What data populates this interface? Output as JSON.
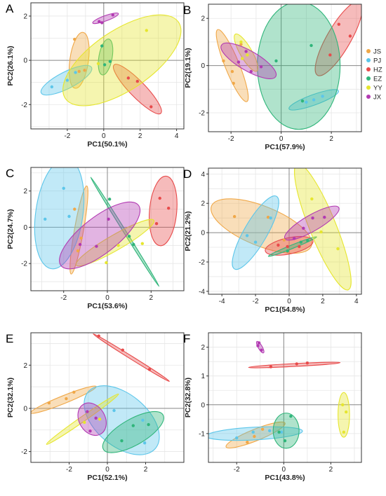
{
  "colors": {
    "JS": "#f0a848",
    "PJ": "#5cc6ea",
    "HZ": "#e84b4b",
    "EZ": "#2fb57a",
    "YY": "#e6e62e",
    "JX": "#b23ab2"
  },
  "legend": {
    "items": [
      {
        "key": "JS",
        "label": "JS"
      },
      {
        "key": "PJ",
        "label": "PJ"
      },
      {
        "key": "HZ",
        "label": "HZ"
      },
      {
        "key": "EZ",
        "label": "EZ"
      },
      {
        "key": "YY",
        "label": "YY"
      },
      {
        "key": "JX",
        "label": "JX"
      }
    ]
  },
  "chart_data": [
    {
      "type": "scatter",
      "panel": "A",
      "xlabel": "PC1(50.1%)",
      "ylabel": "PC2(26.1%)",
      "xlim": [
        -4,
        4.4
      ],
      "ylim": [
        -3.1,
        2.6
      ],
      "xticks": [
        -2,
        0,
        2,
        4
      ],
      "yticks": [
        -2,
        0,
        2
      ],
      "series": [
        {
          "group": "JS",
          "points": [
            [
              -1.6,
              0.95
            ],
            [
              -1.35,
              -0.5
            ],
            [
              -1.05,
              -0.45
            ]
          ],
          "ellipse": {
            "cx": -1.35,
            "cy": 0.0,
            "rx": 1.55,
            "ry": 0.42,
            "angle": 82
          }
        },
        {
          "group": "PJ",
          "points": [
            [
              -2.85,
              -1.2
            ],
            [
              -2.0,
              -0.9
            ],
            [
              -1.55,
              -0.55
            ]
          ],
          "ellipse": {
            "cx": -2.05,
            "cy": -0.9,
            "rx": 1.55,
            "ry": 0.38,
            "angle": 27
          }
        },
        {
          "group": "HZ",
          "points": [
            [
              1.35,
              -0.8
            ],
            [
              1.85,
              -0.95
            ],
            [
              2.6,
              -2.1
            ]
          ],
          "ellipse": {
            "cx": 1.85,
            "cy": -1.3,
            "rx": 1.85,
            "ry": 0.36,
            "angle": -46
          }
        },
        {
          "group": "EZ",
          "points": [
            [
              -0.1,
              0.65
            ],
            [
              0.05,
              -0.2
            ],
            [
              0.35,
              -0.05
            ]
          ],
          "ellipse": {
            "cx": 0.1,
            "cy": 0.15,
            "rx": 1.0,
            "ry": 0.3,
            "angle": 80
          }
        },
        {
          "group": "YY",
          "points": [
            [
              2.35,
              1.35
            ],
            [
              -0.3,
              -0.15
            ]
          ],
          "ellipse": {
            "cx": 1.0,
            "cy": 0.0,
            "rx": 3.75,
            "ry": 1.35,
            "angle": 34
          }
        },
        {
          "group": "JX",
          "points": [
            [
              -0.25,
              1.75
            ],
            [
              0.5,
              2.05
            ],
            [
              -0.1,
              1.7
            ]
          ],
          "ellipse": {
            "cx": 0.1,
            "cy": 1.9,
            "rx": 0.75,
            "ry": 0.12,
            "angle": 20
          }
        }
      ]
    },
    {
      "type": "scatter",
      "panel": "B",
      "xlabel": "PC1(57.9%)",
      "ylabel": "PC2(19.1%)",
      "xlim": [
        -2.9,
        3.2
      ],
      "ylim": [
        -2.8,
        2.6
      ],
      "xticks": [
        -2,
        0,
        2
      ],
      "yticks": [
        -2,
        0,
        2
      ],
      "series": [
        {
          "group": "JS",
          "points": [
            [
              -2.3,
              0.2
            ],
            [
              -1.95,
              -0.25
            ],
            [
              -1.9,
              -0.75
            ],
            [
              -1.6,
              0.9
            ]
          ],
          "ellipse": {
            "cx": -1.95,
            "cy": 0.0,
            "rx": 1.55,
            "ry": 0.3,
            "angle": -68
          }
        },
        {
          "group": "PJ",
          "points": [
            [
              1.0,
              -1.55
            ],
            [
              1.3,
              -1.45
            ],
            [
              1.65,
              -1.3
            ]
          ],
          "ellipse": {
            "cx": 1.3,
            "cy": -1.45,
            "rx": 1.05,
            "ry": 0.22,
            "angle": 20
          }
        },
        {
          "group": "HZ",
          "points": [
            [
              2.3,
              1.75
            ],
            [
              2.75,
              1.25
            ],
            [
              1.95,
              0.45
            ]
          ],
          "ellipse": {
            "cx": 2.3,
            "cy": 1.15,
            "rx": 1.7,
            "ry": 0.5,
            "angle": 60
          }
        },
        {
          "group": "EZ",
          "points": [
            [
              -0.2,
              0.2
            ],
            [
              1.2,
              0.85
            ],
            [
              0.85,
              -1.5
            ]
          ],
          "ellipse": {
            "cx": 0.7,
            "cy": 0.0,
            "rx": 1.65,
            "ry": 2.7,
            "angle": 0
          }
        },
        {
          "group": "YY",
          "points": [
            [
              -1.6,
              1.0
            ],
            [
              -1.35,
              0.45
            ],
            [
              -1.55,
              0.3
            ]
          ],
          "ellipse": {
            "cx": -1.4,
            "cy": 0.55,
            "rx": 0.85,
            "ry": 0.25,
            "angle": -60
          }
        },
        {
          "group": "JX",
          "points": [
            [
              -1.4,
              0.6
            ],
            [
              -1.2,
              -0.25
            ],
            [
              -1.7,
              0.15
            ],
            [
              -0.8,
              -0.05
            ]
          ],
          "ellipse": {
            "cx": -1.3,
            "cy": 0.2,
            "rx": 1.25,
            "ry": 0.42,
            "angle": -30
          }
        }
      ]
    },
    {
      "type": "scatter",
      "panel": "C",
      "xlabel": "PC1(53.6%)",
      "ylabel": "PC2(24.7%)",
      "xlim": [
        -3.5,
        3.5
      ],
      "ylim": [
        -3.5,
        3.3
      ],
      "xticks": [
        -2,
        0,
        2
      ],
      "yticks": [
        -2,
        0,
        2
      ],
      "series": [
        {
          "group": "JS",
          "points": [
            [
              -1.5,
              1.0
            ],
            [
              -1.2,
              -0.6
            ],
            [
              -1.35,
              -1.3
            ]
          ],
          "ellipse": {
            "cx": -1.3,
            "cy": -0.15,
            "rx": 2.05,
            "ry": 0.25,
            "angle": 80
          }
        },
        {
          "group": "PJ",
          "points": [
            [
              -2.0,
              2.15
            ],
            [
              -2.85,
              0.45
            ],
            [
              -1.75,
              0.6
            ]
          ],
          "ellipse": {
            "cx": -2.2,
            "cy": 0.75,
            "rx": 2.55,
            "ry": 1.3,
            "angle": 82
          }
        },
        {
          "group": "HZ",
          "points": [
            [
              2.4,
              1.6
            ],
            [
              2.8,
              1.05
            ],
            [
              2.25,
              0.2
            ]
          ],
          "ellipse": {
            "cx": 2.55,
            "cy": 0.9,
            "rx": 1.6,
            "ry": 0.75,
            "angle": 85
          }
        },
        {
          "group": "EZ",
          "points": [
            [
              0.1,
              1.55
            ],
            [
              1.0,
              -0.5
            ],
            [
              1.2,
              -0.95
            ]
          ],
          "ellipse": {
            "cx": 0.8,
            "cy": -0.25,
            "rx": 2.95,
            "ry": 0.07,
            "angle": -58
          }
        },
        {
          "group": "YY",
          "points": [
            [
              1.6,
              -0.9
            ],
            [
              0.5,
              -1.0
            ],
            [
              -0.05,
              -1.95
            ]
          ],
          "ellipse": {
            "cx": 0.35,
            "cy": -0.85,
            "rx": 2.05,
            "ry": 0.42,
            "angle": 30
          }
        },
        {
          "group": "JX",
          "points": [
            [
              -1.25,
              -0.95
            ],
            [
              0.05,
              0.45
            ],
            [
              -0.5,
              -1.05
            ]
          ],
          "ellipse": {
            "cx": -0.35,
            "cy": -0.45,
            "rx": 2.25,
            "ry": 1.0,
            "angle": 38
          }
        }
      ]
    },
    {
      "type": "scatter",
      "panel": "D",
      "xlabel": "PC1(54.8%)",
      "ylabel": "PC2(21.2%)",
      "xlim": [
        -4.8,
        4.3
      ],
      "ylim": [
        -4.2,
        4.4
      ],
      "xticks": [
        -4,
        -2,
        0,
        2,
        4
      ],
      "yticks": [
        -4,
        -2,
        0,
        2,
        4
      ],
      "series": [
        {
          "group": "JS",
          "points": [
            [
              -3.25,
              1.1
            ],
            [
              -1.25,
              1.05
            ],
            [
              -0.3,
              -0.5
            ]
          ],
          "ellipse": {
            "cx": -1.65,
            "cy": 0.45,
            "rx": 3.2,
            "ry": 1.35,
            "angle": -22
          }
        },
        {
          "group": "PJ",
          "points": [
            [
              -2.5,
              -0.2
            ],
            [
              -2.0,
              -0.65
            ],
            [
              -1.1,
              1.0
            ]
          ],
          "ellipse": {
            "cx": -2.0,
            "cy": 0.0,
            "rx": 2.5,
            "ry": 0.78,
            "angle": 60
          }
        },
        {
          "group": "HZ",
          "points": [
            [
              -0.1,
              -0.95
            ],
            [
              0.6,
              -0.95
            ],
            [
              -0.65,
              -0.85
            ]
          ],
          "ellipse": {
            "cx": 0.0,
            "cy": -0.9,
            "rx": 1.45,
            "ry": 0.55,
            "angle": 12
          }
        },
        {
          "group": "EZ",
          "points": [
            [
              -0.1,
              -1.25
            ],
            [
              0.7,
              -0.65
            ],
            [
              1.1,
              -0.55
            ]
          ],
          "ellipse": {
            "cx": 0.2,
            "cy": -0.95,
            "rx": 1.55,
            "ry": 0.12,
            "angle": 22
          }
        },
        {
          "group": "YY",
          "points": [
            [
              1.35,
              2.3
            ],
            [
              1.9,
              0.05
            ],
            [
              2.9,
              -1.1
            ]
          ],
          "ellipse": {
            "cx": 2.0,
            "cy": 0.4,
            "rx": 4.05,
            "ry": 0.9,
            "angle": -68
          }
        },
        {
          "group": "JX",
          "points": [
            [
              0.85,
              0.3
            ],
            [
              1.4,
              1.0
            ],
            [
              2.1,
              1.05
            ],
            [
              0.3,
              -0.4
            ]
          ],
          "ellipse": {
            "cx": 1.35,
            "cy": 0.65,
            "rx": 1.85,
            "ry": 0.55,
            "angle": 30
          }
        }
      ]
    },
    {
      "type": "scatter",
      "panel": "E",
      "xlabel": "PC1(52.1%)",
      "ylabel": "PC2(32.1%)",
      "xlim": [
        -4,
        4
      ],
      "ylim": [
        -2.5,
        3.5
      ],
      "xticks": [
        -2,
        0,
        2
      ],
      "yticks": [
        -2,
        0,
        2
      ],
      "series": [
        {
          "group": "JS",
          "points": [
            [
              -3.05,
              0.25
            ],
            [
              -2.15,
              0.45
            ],
            [
              -1.75,
              0.75
            ]
          ],
          "ellipse": {
            "cx": -2.3,
            "cy": 0.4,
            "rx": 1.85,
            "ry": 0.18,
            "angle": 22
          }
        },
        {
          "group": "PJ",
          "points": [
            [
              0.35,
              -0.1
            ],
            [
              1.85,
              -0.55
            ],
            [
              1.95,
              -1.6
            ]
          ],
          "ellipse": {
            "cx": 0.75,
            "cy": -0.55,
            "rx": 2.3,
            "ry": 1.2,
            "angle": -40
          }
        },
        {
          "group": "HZ",
          "points": [
            [
              0.8,
              2.7
            ],
            [
              2.2,
              1.8
            ],
            [
              -0.45,
              3.35
            ]
          ],
          "ellipse": {
            "cx": 1.25,
            "cy": 2.35,
            "rx": 2.35,
            "ry": 0.07,
            "angle": -32
          }
        },
        {
          "group": "EZ",
          "points": [
            [
              0.75,
              -1.5
            ],
            [
              1.35,
              -0.8
            ],
            [
              2.15,
              -0.75
            ]
          ],
          "ellipse": {
            "cx": 1.35,
            "cy": -1.1,
            "rx": 1.8,
            "ry": 0.6,
            "angle": 30
          }
        },
        {
          "group": "YY",
          "points": [
            [
              -0.4,
              -0.5
            ],
            [
              -1.2,
              -0.65
            ]
          ],
          "ellipse": {
            "cx": -1.3,
            "cy": -0.5,
            "rx": 2.3,
            "ry": 0.12,
            "angle": 35
          }
        },
        {
          "group": "JX",
          "points": [
            [
              -1.05,
              -0.15
            ],
            [
              -0.6,
              -0.45
            ],
            [
              -0.9,
              -1.05
            ]
          ],
          "ellipse": {
            "cx": -0.8,
            "cy": -0.5,
            "rx": 0.9,
            "ry": 0.6,
            "angle": -60
          }
        }
      ]
    },
    {
      "type": "scatter",
      "panel": "F",
      "xlabel": "PC1(43.8%)",
      "ylabel": "PC2(32.8%)",
      "xlim": [
        -3.2,
        3.3
      ],
      "ylim": [
        -2.0,
        2.5
      ],
      "xticks": [
        -2,
        0,
        2
      ],
      "yticks": [
        -1,
        0,
        1,
        2
      ],
      "series": [
        {
          "group": "JS",
          "points": [
            [
              -1.55,
              -1.3
            ],
            [
              -1.25,
              -1.1
            ],
            [
              -0.9,
              -0.85
            ]
          ],
          "ellipse": {
            "cx": -1.2,
            "cy": -1.05,
            "rx": 1.35,
            "ry": 0.2,
            "angle": 22
          }
        },
        {
          "group": "PJ",
          "points": [
            [
              -2.0,
              -1.15
            ],
            [
              -1.3,
              -0.95
            ],
            [
              -0.6,
              -0.9
            ],
            [
              -0.1,
              -0.95
            ]
          ],
          "ellipse": {
            "cx": -1.25,
            "cy": -1.0,
            "rx": 2.05,
            "ry": 0.22,
            "angle": 3
          }
        },
        {
          "group": "HZ",
          "points": [
            [
              -0.55,
              1.32
            ],
            [
              0.55,
              1.42
            ],
            [
              1.0,
              1.45
            ]
          ],
          "ellipse": {
            "cx": 0.45,
            "cy": 1.38,
            "rx": 1.95,
            "ry": 0.05,
            "angle": 3
          }
        },
        {
          "group": "EZ",
          "points": [
            [
              0.3,
              -0.4
            ],
            [
              0.05,
              -1.25
            ],
            [
              -0.2,
              -0.95
            ]
          ],
          "ellipse": {
            "cx": 0.1,
            "cy": -0.9,
            "rx": 0.75,
            "ry": 0.45,
            "angle": 90
          }
        },
        {
          "group": "YY",
          "points": [
            [
              2.5,
              0.0
            ],
            [
              2.65,
              -0.25
            ],
            [
              2.55,
              -0.95
            ]
          ],
          "ellipse": {
            "cx": 2.55,
            "cy": -0.35,
            "rx": 0.95,
            "ry": 0.2,
            "angle": 90
          }
        },
        {
          "group": "JX",
          "points": [
            [
              -1.1,
              2.05
            ],
            [
              -0.95,
              1.9
            ],
            [
              -1.05,
              2.15
            ]
          ],
          "ellipse": {
            "cx": -1.0,
            "cy": 2.0,
            "rx": 0.28,
            "ry": 0.07,
            "angle": -60
          }
        }
      ]
    }
  ]
}
